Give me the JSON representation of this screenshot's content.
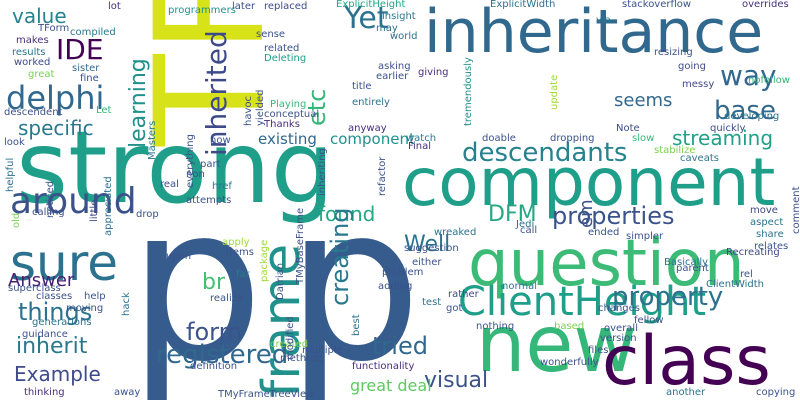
{
  "word_cloud": {
    "words": [
      {
        "text": "p",
        "color": "#365c8d"
      },
      {
        "text": "p",
        "color": "#365c8d"
      },
      {
        "text": "TFrame",
        "color": "#d8e219"
      },
      {
        "text": "strong",
        "color": "#1f9e89"
      },
      {
        "text": "inheritance",
        "color": "#31688e"
      },
      {
        "text": "component",
        "color": "#1f9e89"
      },
      {
        "text": "question",
        "color": "#3bbb75"
      },
      {
        "text": "new",
        "color": "#35b779"
      },
      {
        "text": "class",
        "color": "#440154"
      },
      {
        "text": "frame",
        "color": "#21918c"
      },
      {
        "text": "ClientHeight",
        "color": "#1f9e89"
      },
      {
        "text": "sure",
        "color": "#2c728e"
      },
      {
        "text": "around",
        "color": "#3b528b"
      },
      {
        "text": "delphi",
        "color": "#31688e"
      },
      {
        "text": "inherited",
        "color": "#3e4a89"
      },
      {
        "text": "descendants",
        "color": "#26828e"
      },
      {
        "text": "way",
        "color": "#31688e"
      },
      {
        "text": "base",
        "color": "#31688e"
      },
      {
        "text": "properties",
        "color": "#3b528b"
      },
      {
        "text": "Yet",
        "color": "#2c728e"
      },
      {
        "text": "IDE",
        "color": "#440154"
      },
      {
        "text": "value",
        "color": "#26828e"
      },
      {
        "text": "specific",
        "color": "#2a788e"
      },
      {
        "text": "learning",
        "color": "#21918c"
      },
      {
        "text": "etc",
        "color": "#35b779"
      },
      {
        "text": "seems",
        "color": "#31688e"
      },
      {
        "text": "streaming",
        "color": "#1fa187"
      },
      {
        "text": "found",
        "color": "#22a884"
      },
      {
        "text": "DFM",
        "color": "#22a884"
      },
      {
        "text": "Well",
        "color": "#2c728e"
      },
      {
        "text": "em",
        "color": "#3b528b"
      },
      {
        "text": "things",
        "color": "#2c728e"
      },
      {
        "text": "inherit",
        "color": "#2a788e"
      },
      {
        "text": "br",
        "color": "#44bf70"
      },
      {
        "text": "form",
        "color": "#3b528b"
      },
      {
        "text": "tried",
        "color": "#31688e"
      },
      {
        "text": "creating",
        "color": "#2a788e"
      },
      {
        "text": "property",
        "color": "#2c728e"
      },
      {
        "text": "registered",
        "color": "#31688e"
      },
      {
        "text": "visual",
        "color": "#3b528b"
      },
      {
        "text": "Example",
        "color": "#3e4a89"
      },
      {
        "text": "great deal",
        "color": "#5ec962"
      },
      {
        "text": "Answer",
        "color": "#481f70"
      },
      {
        "text": "existing",
        "color": "#31688e"
      },
      {
        "text": "component",
        "color": "#21918c"
      },
      {
        "text": "lot",
        "color": "#46327e"
      },
      {
        "text": "programmers",
        "color": "#21918c"
      },
      {
        "text": "later",
        "color": "#3b528b"
      },
      {
        "text": "replaced",
        "color": "#3e4a89"
      },
      {
        "text": "ExplicitHeight",
        "color": "#22a884"
      },
      {
        "text": "insight",
        "color": "#2a788e"
      },
      {
        "text": "ExplicitWidth",
        "color": "#2c728e"
      },
      {
        "text": "stackoverflow",
        "color": "#3b528b"
      },
      {
        "text": "overrides",
        "color": "#46327e"
      },
      {
        "text": "via",
        "color": "#2a788e"
      },
      {
        "text": "compiled",
        "color": "#2a788e"
      },
      {
        "text": "makes",
        "color": "#46327e"
      },
      {
        "text": "TForm",
        "color": "#3b528b"
      },
      {
        "text": "results",
        "color": "#2c728e"
      },
      {
        "text": "worked",
        "color": "#3e4a89"
      },
      {
        "text": "great",
        "color": "#7ad151"
      },
      {
        "text": "sister",
        "color": "#31688e"
      },
      {
        "text": "fine",
        "color": "#3b528b"
      },
      {
        "text": "descendent",
        "color": "#3b528b"
      },
      {
        "text": "Let",
        "color": "#35b779"
      },
      {
        "text": "sense",
        "color": "#3b528b"
      },
      {
        "text": "related",
        "color": "#3b528b"
      },
      {
        "text": "Deleting",
        "color": "#1f9e89"
      },
      {
        "text": "may",
        "color": "#2c728e"
      },
      {
        "text": "world",
        "color": "#2c728e"
      },
      {
        "text": "asking",
        "color": "#3b528b"
      },
      {
        "text": "earlier",
        "color": "#3b528b"
      },
      {
        "text": "giving",
        "color": "#472d7b"
      },
      {
        "text": "resizing",
        "color": "#3b528b"
      },
      {
        "text": "going",
        "color": "#3e4a89"
      },
      {
        "text": "nofollow",
        "color": "#35b779"
      },
      {
        "text": "messy",
        "color": "#3e4a89"
      },
      {
        "text": "developing",
        "color": "#2c728e"
      },
      {
        "text": "title",
        "color": "#3b528b"
      },
      {
        "text": "Playing",
        "color": "#35b779"
      },
      {
        "text": "conceptual",
        "color": "#3b528b"
      },
      {
        "text": "Thanks",
        "color": "#472d7b"
      },
      {
        "text": "entirely",
        "color": "#2c728e"
      },
      {
        "text": "anyway",
        "color": "#472d7b"
      },
      {
        "text": "havoc",
        "color": "#3b528b"
      },
      {
        "text": "yielded",
        "color": "#3b528b"
      },
      {
        "text": "tremendously",
        "color": "#21918c"
      },
      {
        "text": "update",
        "color": "#a0da39"
      },
      {
        "text": "Note",
        "color": "#3e4a89"
      },
      {
        "text": "slow",
        "color": "#35b779"
      },
      {
        "text": "quickly",
        "color": "#3e4a89"
      },
      {
        "text": "stabilize",
        "color": "#7ad151"
      },
      {
        "text": "caveats",
        "color": "#2a788e"
      },
      {
        "text": "look",
        "color": "#3b528b"
      },
      {
        "text": "now",
        "color": "#3b528b"
      },
      {
        "text": "everything",
        "color": "#3b528b"
      },
      {
        "text": "Masters",
        "color": "#2c728e"
      },
      {
        "text": "Final",
        "color": "#46327e"
      },
      {
        "text": "watch",
        "color": "#2a788e"
      },
      {
        "text": "doable",
        "color": "#3b528b"
      },
      {
        "text": "dropping",
        "color": "#3b528b"
      },
      {
        "text": "helpful",
        "color": "#2c728e"
      },
      {
        "text": "noticed",
        "color": "#3b528b"
      },
      {
        "text": "little",
        "color": "#3e4a89"
      },
      {
        "text": "old",
        "color": "#7ad151"
      },
      {
        "text": "appreciated",
        "color": "#2c728e"
      },
      {
        "text": "real",
        "color": "#3b528b"
      },
      {
        "text": "part",
        "color": "#3b528b"
      },
      {
        "text": "non",
        "color": "#3b528b"
      },
      {
        "text": "href",
        "color": "#2a788e"
      },
      {
        "text": "attempts",
        "color": "#3b528b"
      },
      {
        "text": "drop",
        "color": "#3b528b"
      },
      {
        "text": "calling",
        "color": "#3b528b"
      },
      {
        "text": "inheriting",
        "color": "#3b528b"
      },
      {
        "text": "refactor",
        "color": "#3b528b"
      },
      {
        "text": "call",
        "color": "#3b528b"
      },
      {
        "text": "Jedi",
        "color": "#2c728e"
      },
      {
        "text": "wreaked",
        "color": "#2c728e"
      },
      {
        "text": "suggestion",
        "color": "#3b528b"
      },
      {
        "text": "ended",
        "color": "#3b528b"
      },
      {
        "text": "simpler",
        "color": "#3b528b"
      },
      {
        "text": "Basically",
        "color": "#2c728e"
      },
      {
        "text": "parent",
        "color": "#3b528b"
      },
      {
        "text": "move",
        "color": "#3e4a89"
      },
      {
        "text": "aspect",
        "color": "#2c728e"
      },
      {
        "text": "share",
        "color": "#2c728e"
      },
      {
        "text": "relates",
        "color": "#3b528b"
      },
      {
        "text": "comment",
        "color": "#3b528b"
      },
      {
        "text": "Recreating",
        "color": "#3e4a89"
      },
      {
        "text": "apply",
        "color": "#a0da39"
      },
      {
        "text": "Items",
        "color": "#3b528b"
      },
      {
        "text": "TMyBaseFrame",
        "color": "#3b528b"
      },
      {
        "text": "upon",
        "color": "#3b528b"
      },
      {
        "text": "superclass",
        "color": "#3b528b"
      },
      {
        "text": "far",
        "color": "#2a788e"
      },
      {
        "text": "package",
        "color": "#a0da39"
      },
      {
        "text": "Darrian",
        "color": "#3b528b"
      },
      {
        "text": "problem",
        "color": "#3b528b"
      },
      {
        "text": "either",
        "color": "#3b528b"
      },
      {
        "text": "rel",
        "color": "#3b528b"
      },
      {
        "text": "ClientWidth",
        "color": "#2c728e"
      },
      {
        "text": "classes",
        "color": "#3b528b"
      },
      {
        "text": "moving",
        "color": "#3b528b"
      },
      {
        "text": "help",
        "color": "#3b528b"
      },
      {
        "text": "hack",
        "color": "#2c728e"
      },
      {
        "text": "realize",
        "color": "#3b528b"
      },
      {
        "text": "adding",
        "color": "#3b528b"
      },
      {
        "text": "rather",
        "color": "#3e4a89"
      },
      {
        "text": "got",
        "color": "#3b528b"
      },
      {
        "text": "normal",
        "color": "#2a788e"
      },
      {
        "text": "changes",
        "color": "#3b528b"
      },
      {
        "text": "generations",
        "color": "#2c728e"
      },
      {
        "text": "guidance",
        "color": "#3b528b"
      },
      {
        "text": "definition",
        "color": "#3b528b"
      },
      {
        "text": "TMyFrameTreeView",
        "color": "#3b528b"
      },
      {
        "text": "created",
        "color": "#7ad151"
      },
      {
        "text": "modified",
        "color": "#3b528b"
      },
      {
        "text": "methods",
        "color": "#3b528b"
      },
      {
        "text": "multiple",
        "color": "#3b528b"
      },
      {
        "text": "functionality",
        "color": "#472d7b"
      },
      {
        "text": "best",
        "color": "#2c728e"
      },
      {
        "text": "test",
        "color": "#2c728e"
      },
      {
        "text": "nothing",
        "color": "#3b528b"
      },
      {
        "text": "based",
        "color": "#7ad151"
      },
      {
        "text": "fellow",
        "color": "#3b528b"
      },
      {
        "text": "overall",
        "color": "#3b528b"
      },
      {
        "text": "version",
        "color": "#3b528b"
      },
      {
        "text": "files",
        "color": "#3b528b"
      },
      {
        "text": "wonderfully",
        "color": "#3b528b"
      },
      {
        "text": "thinking",
        "color": "#472d7b"
      },
      {
        "text": "away",
        "color": "#3b528b"
      },
      {
        "text": "another",
        "color": "#2c728e"
      },
      {
        "text": "copying",
        "color": "#3b528b"
      }
    ]
  }
}
